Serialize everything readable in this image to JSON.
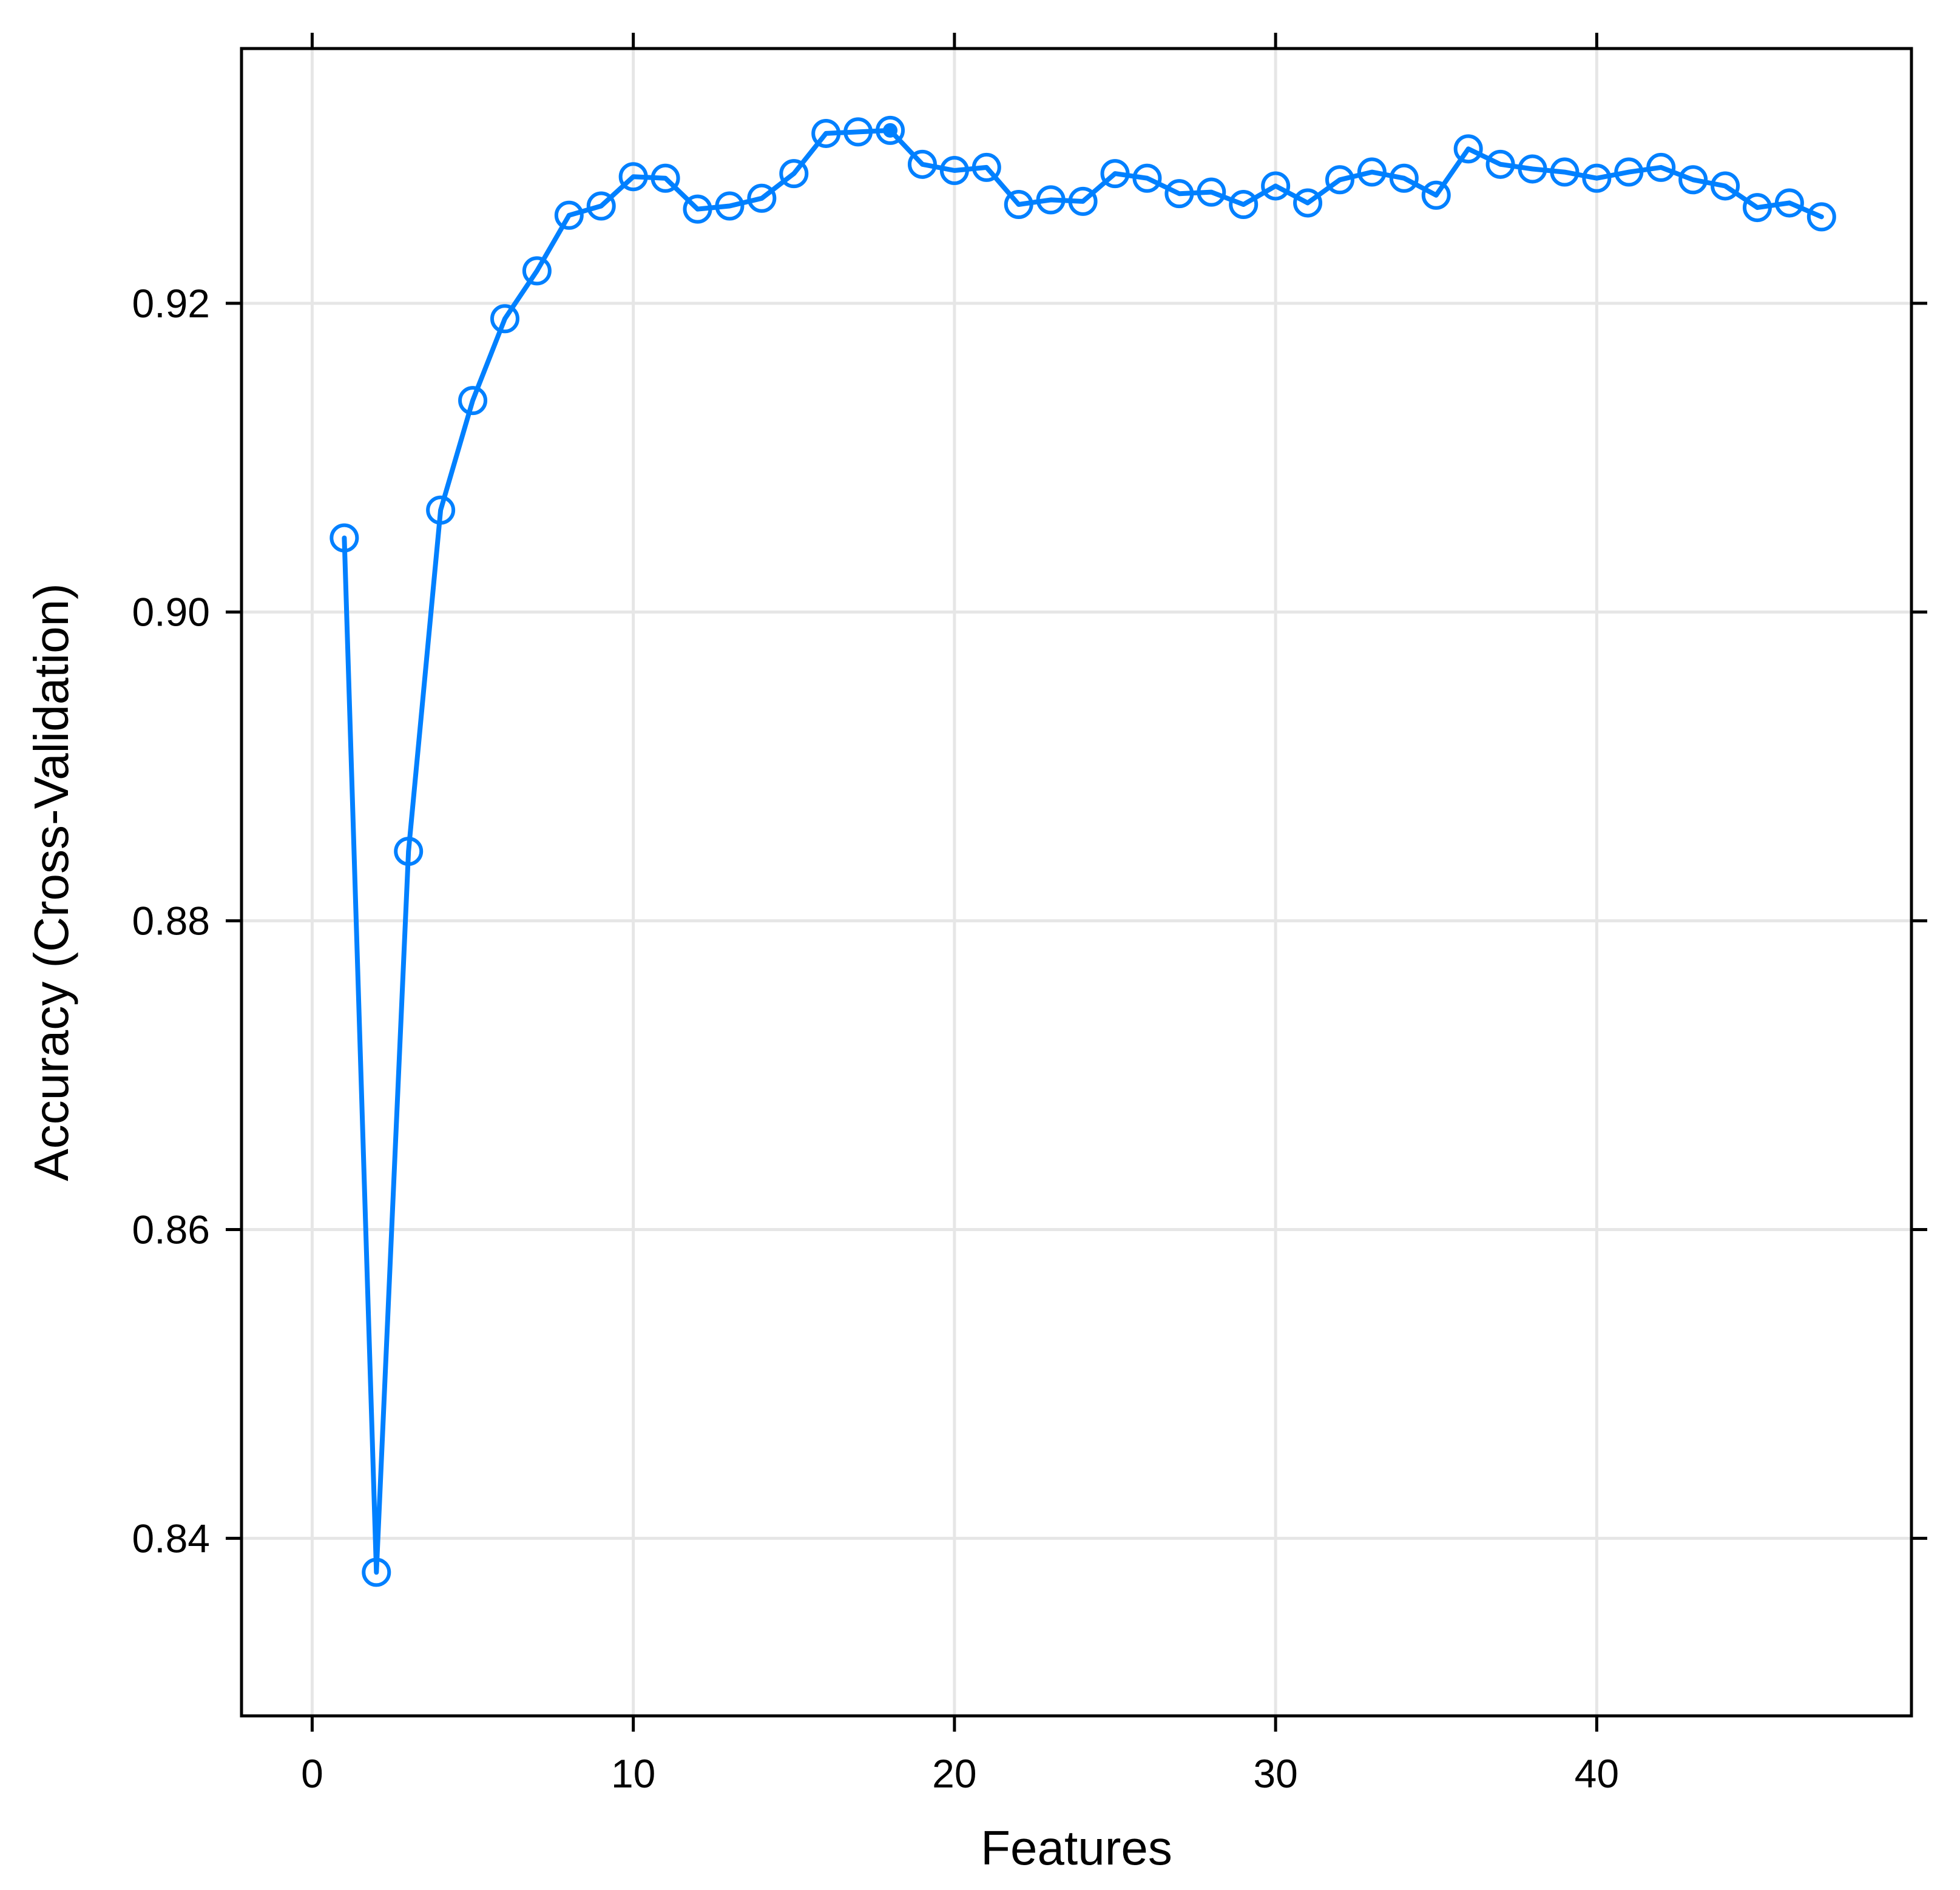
{
  "chart_data": {
    "type": "line",
    "title": "",
    "xlabel": "Features",
    "ylabel": "Accuracy (Cross-Validation)",
    "xlim": [
      -2.2,
      49.8
    ],
    "ylim": [
      0.8285,
      0.9365
    ],
    "x_ticks": [
      0,
      10,
      20,
      30,
      40
    ],
    "x_tick_labels": [
      "0",
      "10",
      "20",
      "30",
      "40"
    ],
    "y_ticks": [
      0.84,
      0.86,
      0.88,
      0.9,
      0.92
    ],
    "y_tick_labels": [
      "0.84",
      "0.86",
      "0.88",
      "0.90",
      "0.92"
    ],
    "grid": true,
    "legend": "none",
    "colors": {
      "series": "#0080ff",
      "grid": "#e6e6e6",
      "axis": "#000000"
    },
    "selected_point": {
      "x": 18,
      "y": 0.9312
    },
    "series": [
      {
        "x": [
          1,
          2,
          3,
          4,
          5,
          6,
          7,
          8,
          9,
          10,
          11,
          12,
          13,
          14,
          15,
          16,
          17,
          18,
          19,
          20,
          21,
          22,
          23,
          24,
          25,
          26,
          27,
          28,
          29,
          30,
          31,
          32,
          33,
          34,
          35,
          36,
          37,
          38,
          39,
          40,
          41,
          42,
          43,
          44,
          45,
          46,
          47
        ],
        "values": [
          0.9048,
          0.8378,
          0.8845,
          0.9066,
          0.9137,
          0.919,
          0.9221,
          0.9257,
          0.9263,
          0.9282,
          0.9281,
          0.9261,
          0.9263,
          0.9268,
          0.9284,
          0.931,
          0.9311,
          0.9312,
          0.929,
          0.9286,
          0.9288,
          0.9264,
          0.9267,
          0.9266,
          0.9284,
          0.9281,
          0.9271,
          0.9272,
          0.9264,
          0.9276,
          0.9265,
          0.928,
          0.9285,
          0.9281,
          0.927,
          0.93,
          0.929,
          0.9287,
          0.9285,
          0.9281,
          0.9285,
          0.9288,
          0.928,
          0.9276,
          0.9262,
          0.9265,
          0.9256
        ]
      }
    ]
  }
}
